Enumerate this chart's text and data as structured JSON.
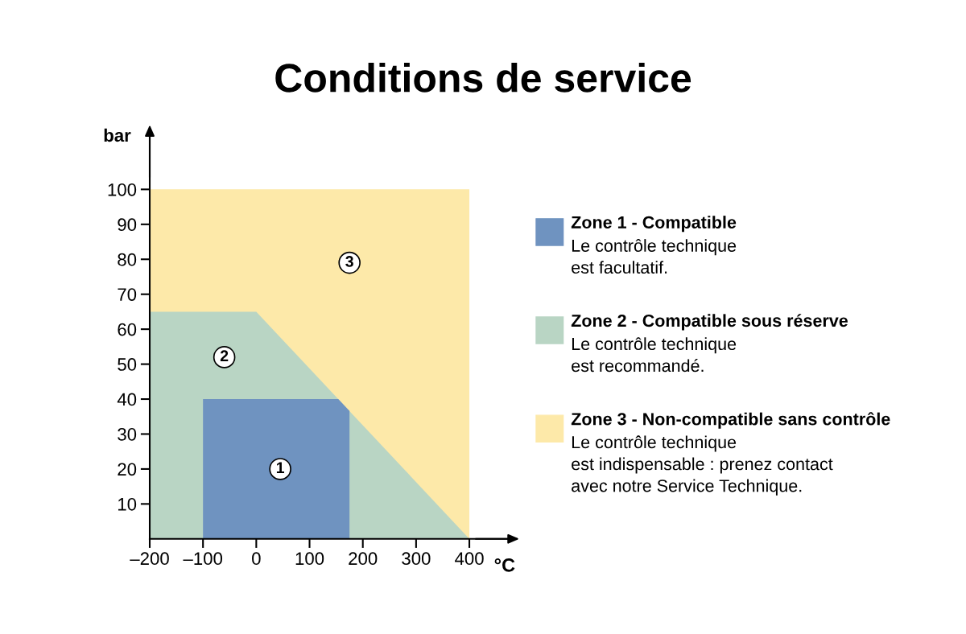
{
  "chart_data": {
    "type": "area",
    "title": "Conditions de service",
    "xlabel": "°C",
    "ylabel": "bar",
    "series": [
      {
        "name": "Zone 1 - Compatible",
        "color": "#6f93c0",
        "x": [
          -100,
          154,
          175
        ],
        "values": [
          40,
          40,
          36.6
        ]
      },
      {
        "name": "Zone 2 - Compatible sous réserve",
        "color": "#b9d5c4",
        "x": [
          -200,
          0,
          400
        ],
        "values": [
          65,
          65,
          0
        ]
      },
      {
        "name": "Zone 3 - Non-compatible sans contrôle",
        "color": "#fde9a9",
        "x": [
          -200,
          400
        ],
        "values": [
          100,
          100
        ]
      }
    ],
    "annotations": [
      {
        "text": "1",
        "x": 45,
        "y": 20
      },
      {
        "text": "2",
        "x": -60,
        "y": 52
      },
      {
        "text": "3",
        "x": 175,
        "y": 79
      },
      "Le contrôle technique\nest facultatif.",
      "Le contrôle technique\nest recommandé.",
      "Le contrôle technique\nest indispensable : prenez contact\navec notre Service Technique."
    ],
    "xlim": [
      -200,
      480
    ],
    "ylim": [
      0,
      115
    ],
    "xticks": [
      {
        "value": -200,
        "label": "–200"
      },
      {
        "value": -100,
        "label": "–100"
      },
      0,
      100,
      200,
      300,
      400
    ],
    "yticks": [
      10,
      20,
      30,
      40,
      50,
      60,
      70,
      80,
      90,
      100
    ],
    "grid": false,
    "legend": "right"
  }
}
